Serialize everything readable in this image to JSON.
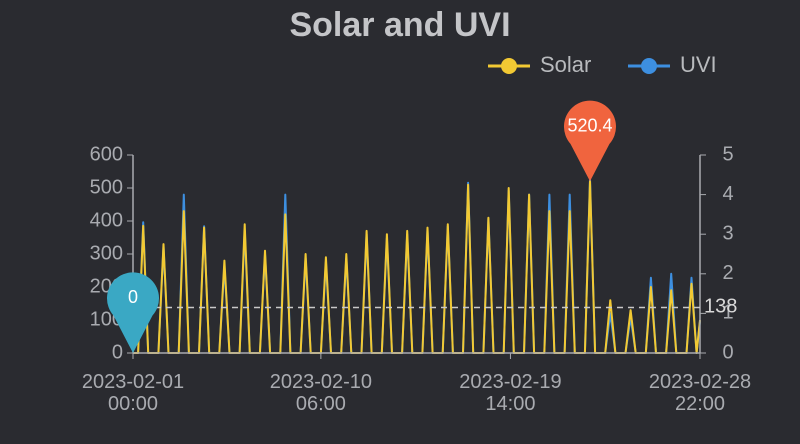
{
  "chart_data": {
    "type": "line",
    "title": "Solar and UVI",
    "x": [
      "2023-02-01 00:00",
      "2023-02-01 06:00",
      "2023-02-01 12:00",
      "2023-02-01 18:00",
      "2023-02-02 06:00",
      "2023-02-02 12:00",
      "2023-02-02 18:00",
      "2023-02-03 06:00",
      "2023-02-03 12:00",
      "2023-02-03 18:00",
      "2023-02-04 06:00",
      "2023-02-04 12:00",
      "2023-02-04 18:00",
      "2023-02-05 06:00",
      "2023-02-05 12:00",
      "2023-02-05 18:00",
      "2023-02-06 06:00",
      "2023-02-06 12:00",
      "2023-02-06 18:00",
      "2023-02-07 06:00",
      "2023-02-07 12:00",
      "2023-02-07 18:00",
      "2023-02-08 06:00",
      "2023-02-08 12:00",
      "2023-02-08 18:00",
      "2023-02-09 06:00",
      "2023-02-09 12:00",
      "2023-02-09 18:00",
      "2023-02-10 06:00",
      "2023-02-10 12:00",
      "2023-02-10 18:00",
      "2023-02-11 06:00",
      "2023-02-11 12:00",
      "2023-02-11 18:00",
      "2023-02-12 06:00",
      "2023-02-12 12:00",
      "2023-02-12 18:00",
      "2023-02-13 06:00",
      "2023-02-13 12:00",
      "2023-02-13 18:00",
      "2023-02-14 06:00",
      "2023-02-14 12:00",
      "2023-02-14 18:00",
      "2023-02-15 06:00",
      "2023-02-15 12:00",
      "2023-02-15 18:00",
      "2023-02-16 06:00",
      "2023-02-16 12:00",
      "2023-02-16 18:00",
      "2023-02-17 06:00",
      "2023-02-17 12:00",
      "2023-02-17 18:00",
      "2023-02-18 06:00",
      "2023-02-18 12:00",
      "2023-02-18 18:00",
      "2023-02-19 06:00",
      "2023-02-19 12:00",
      "2023-02-19 18:00",
      "2023-02-20 06:00",
      "2023-02-20 12:00",
      "2023-02-20 18:00",
      "2023-02-21 06:00",
      "2023-02-21 12:00",
      "2023-02-21 18:00",
      "2023-02-22 06:00",
      "2023-02-22 12:00",
      "2023-02-22 18:00",
      "2023-02-23 06:00",
      "2023-02-23 12:00",
      "2023-02-23 18:00",
      "2023-02-24 06:00",
      "2023-02-24 12:00",
      "2023-02-24 18:00",
      "2023-02-25 06:00",
      "2023-02-25 12:00",
      "2023-02-25 18:00",
      "2023-02-26 06:00",
      "2023-02-26 12:00",
      "2023-02-26 18:00",
      "2023-02-27 06:00",
      "2023-02-27 12:00",
      "2023-02-27 18:00",
      "2023-02-28 06:00",
      "2023-02-28 12:00",
      "2023-02-28 18:00",
      "2023-02-28 22:00"
    ],
    "series": [
      {
        "name": "Solar",
        "color": "#f2c933",
        "values": [
          0,
          0,
          385,
          0,
          0,
          330,
          0,
          0,
          430,
          0,
          0,
          380,
          0,
          0,
          280,
          0,
          0,
          390,
          0,
          0,
          310,
          0,
          0,
          420,
          0,
          0,
          300,
          0,
          0,
          290,
          0,
          0,
          300,
          0,
          0,
          370,
          0,
          0,
          360,
          0,
          0,
          370,
          0,
          0,
          380,
          0,
          0,
          390,
          0,
          0,
          510,
          0,
          0,
          410,
          0,
          0,
          500,
          0,
          0,
          480,
          0,
          0,
          430,
          0,
          0,
          430,
          0,
          0,
          520.4,
          0,
          0,
          160,
          0,
          0,
          130,
          0,
          0,
          200,
          0,
          0,
          190,
          0,
          0,
          210,
          0,
          100
        ]
      },
      {
        "name": "UVI",
        "color": "#3d8fe0",
        "axis": "y2",
        "values": [
          0,
          0,
          3.3,
          0,
          0,
          2.7,
          0,
          0,
          4,
          0,
          0,
          3.2,
          0,
          0,
          2.2,
          0,
          0,
          3.1,
          0,
          0,
          2.5,
          0,
          0,
          4,
          0,
          0,
          2.4,
          0,
          0,
          2.3,
          0,
          0,
          2.4,
          0,
          0,
          3,
          0,
          0,
          2.9,
          0,
          0,
          3,
          0,
          0,
          3.1,
          0,
          0,
          3.2,
          0,
          0,
          4.3,
          0,
          0,
          3.4,
          0,
          0,
          4.1,
          0,
          0,
          4,
          0,
          0,
          4,
          0,
          0,
          4,
          0,
          0,
          4.4,
          0,
          0,
          1,
          0,
          0,
          0.9,
          0,
          0,
          1.9,
          0,
          0,
          2,
          0,
          0,
          1.9,
          0,
          0.8
        ]
      }
    ],
    "xlim": [
      "2023-02-01 00:00",
      "2023-02-28 22:00"
    ],
    "xticks": [
      "2023-02-01 00:00",
      "2023-02-10 06:00",
      "2023-02-19 14:00",
      "2023-02-28 22:00"
    ],
    "ylim": [
      0,
      600
    ],
    "yticks": [
      0,
      100,
      200,
      300,
      400,
      500,
      600
    ],
    "y2lim": [
      0,
      5
    ],
    "y2ticks": [
      0,
      1,
      2,
      3,
      4,
      5
    ],
    "markers": {
      "max": 520.4,
      "min": 0,
      "average": 138
    }
  }
}
